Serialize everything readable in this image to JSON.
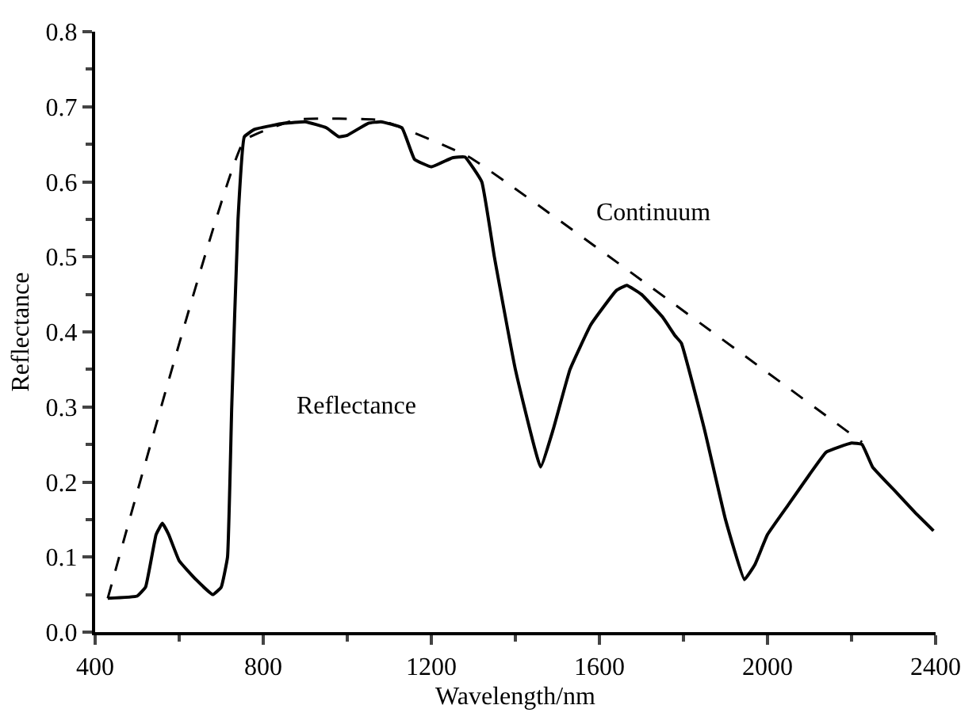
{
  "chart_data": {
    "type": "line",
    "xlabel": "Wavelength/nm",
    "ylabel": "Reflectance",
    "xlim": [
      400,
      2400
    ],
    "xticks": [
      400,
      800,
      1200,
      1600,
      2000,
      2400
    ],
    "ylim": [
      0,
      0.8
    ],
    "yticks": [
      {
        "value": 0,
        "label": "0.0"
      },
      0.1,
      0.2,
      0.3,
      0.4,
      0.5,
      0.6,
      0.7,
      0.8
    ],
    "marker": "none",
    "series": [
      {
        "color": "#000000",
        "line_style": "solid",
        "x": [
          430,
          500,
          520,
          545,
          560,
          575,
          600,
          640,
          680,
          700,
          715,
          725,
          740,
          755,
          780,
          850,
          900,
          950,
          980,
          1000,
          1050,
          1080,
          1130,
          1160,
          1200,
          1250,
          1280,
          1320,
          1350,
          1400,
          1460,
          1490,
          1530,
          1580,
          1640,
          1665,
          1700,
          1750,
          1780,
          1795,
          1850,
          1900,
          1945,
          1970,
          2000,
          2050,
          2100,
          2140,
          2200,
          2225,
          2250,
          2300,
          2350,
          2395
        ],
        "values": [
          0.045,
          0.048,
          0.06,
          0.13,
          0.145,
          0.13,
          0.095,
          0.07,
          0.05,
          0.06,
          0.1,
          0.3,
          0.55,
          0.66,
          0.67,
          0.678,
          0.68,
          0.672,
          0.66,
          0.662,
          0.678,
          0.68,
          0.672,
          0.63,
          0.62,
          0.632,
          0.633,
          0.6,
          0.5,
          0.35,
          0.22,
          0.27,
          0.35,
          0.41,
          0.455,
          0.462,
          0.45,
          0.42,
          0.395,
          0.385,
          0.27,
          0.15,
          0.07,
          0.09,
          0.13,
          0.17,
          0.21,
          0.24,
          0.252,
          0.25,
          0.22,
          0.19,
          0.16,
          0.135
        ]
      },
      {
        "color": "#000000",
        "line_style": "dashed",
        "x": [
          430,
          755,
          880,
          1080,
          1290,
          2225
        ],
        "values": [
          0.045,
          0.655,
          0.683,
          0.682,
          0.633,
          0.253
        ]
      }
    ],
    "annotations": [
      "Reflectance",
      "Continuum"
    ]
  }
}
